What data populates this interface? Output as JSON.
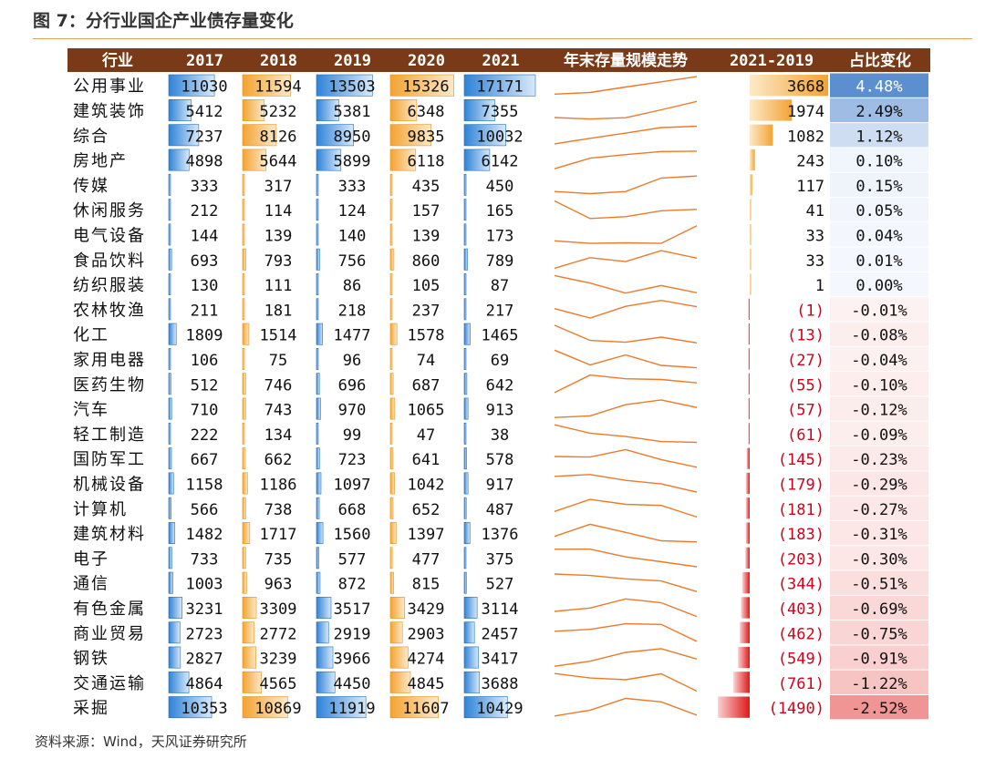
{
  "title": "图 7：分行业国企产业债存量变化",
  "source": "资料来源：Wind，天风证券研究所",
  "colors": {
    "header_bg": "#7a3a17",
    "header_text": "#ffffff",
    "blue_bar": "#2f83d8",
    "orange_bar": "#f3a332",
    "sparkline": "#ec7a2a",
    "negative_text": "#d0021b",
    "diff_pos_bar": "#f3a332",
    "diff_neg_bar": "#e01818",
    "pct_pos": "#5b8fd0",
    "pct_neg": "#e84c4c"
  },
  "chart_data": {
    "type": "table",
    "columns": [
      "行业",
      "2017",
      "2018",
      "2019",
      "2020",
      "2021",
      "年末存量规模走势",
      "2021-2019",
      "占比变化"
    ],
    "years": [
      "2017",
      "2018",
      "2019",
      "2020",
      "2021"
    ],
    "rows": [
      {
        "industry": "公用事业",
        "values": [
          11030,
          11594,
          13503,
          15326,
          17171
        ],
        "diff": 3668,
        "diff_label": "3668",
        "pct": 4.48,
        "pct_label": "4.48%"
      },
      {
        "industry": "建筑装饰",
        "values": [
          5412,
          5232,
          5381,
          6348,
          7355
        ],
        "diff": 1974,
        "diff_label": "1974",
        "pct": 2.49,
        "pct_label": "2.49%"
      },
      {
        "industry": "综合",
        "values": [
          7237,
          8126,
          8950,
          9835,
          10032
        ],
        "diff": 1082,
        "diff_label": "1082",
        "pct": 1.12,
        "pct_label": "1.12%"
      },
      {
        "industry": "房地产",
        "values": [
          4898,
          5644,
          5899,
          6118,
          6142
        ],
        "diff": 243,
        "diff_label": "243",
        "pct": 0.1,
        "pct_label": "0.10%"
      },
      {
        "industry": "传媒",
        "values": [
          333,
          317,
          333,
          435,
          450
        ],
        "diff": 117,
        "diff_label": "117",
        "pct": 0.15,
        "pct_label": "0.15%"
      },
      {
        "industry": "休闲服务",
        "values": [
          212,
          114,
          124,
          157,
          165
        ],
        "diff": 41,
        "diff_label": "41",
        "pct": 0.05,
        "pct_label": "0.05%"
      },
      {
        "industry": "电气设备",
        "values": [
          144,
          139,
          140,
          139,
          173
        ],
        "diff": 33,
        "diff_label": "33",
        "pct": 0.04,
        "pct_label": "0.04%"
      },
      {
        "industry": "食品饮料",
        "values": [
          693,
          793,
          756,
          860,
          789
        ],
        "diff": 33,
        "diff_label": "33",
        "pct": 0.01,
        "pct_label": "0.01%"
      },
      {
        "industry": "纺织服装",
        "values": [
          130,
          111,
          86,
          105,
          87
        ],
        "diff": 1,
        "diff_label": "1",
        "pct": 0.0,
        "pct_label": "0.00%"
      },
      {
        "industry": "农林牧渔",
        "values": [
          211,
          181,
          218,
          237,
          217
        ],
        "diff": -1,
        "diff_label": "(1)",
        "pct": -0.01,
        "pct_label": "-0.01%"
      },
      {
        "industry": "化工",
        "values": [
          1809,
          1514,
          1477,
          1578,
          1465
        ],
        "diff": -13,
        "diff_label": "(13)",
        "pct": -0.08,
        "pct_label": "-0.08%"
      },
      {
        "industry": "家用电器",
        "values": [
          106,
          75,
          96,
          74,
          69
        ],
        "diff": -27,
        "diff_label": "(27)",
        "pct": -0.04,
        "pct_label": "-0.04%"
      },
      {
        "industry": "医药生物",
        "values": [
          512,
          746,
          696,
          687,
          642
        ],
        "diff": -55,
        "diff_label": "(55)",
        "pct": -0.1,
        "pct_label": "-0.10%"
      },
      {
        "industry": "汽车",
        "values": [
          710,
          743,
          970,
          1065,
          913
        ],
        "diff": -57,
        "diff_label": "(57)",
        "pct": -0.12,
        "pct_label": "-0.12%"
      },
      {
        "industry": "轻工制造",
        "values": [
          222,
          134,
          99,
          47,
          38
        ],
        "diff": -61,
        "diff_label": "(61)",
        "pct": -0.09,
        "pct_label": "-0.09%"
      },
      {
        "industry": "国防军工",
        "values": [
          667,
          662,
          723,
          641,
          578
        ],
        "diff": -145,
        "diff_label": "(145)",
        "pct": -0.23,
        "pct_label": "-0.23%"
      },
      {
        "industry": "机械设备",
        "values": [
          1158,
          1186,
          1097,
          1042,
          917
        ],
        "diff": -179,
        "diff_label": "(179)",
        "pct": -0.29,
        "pct_label": "-0.29%"
      },
      {
        "industry": "计算机",
        "values": [
          566,
          738,
          668,
          652,
          487
        ],
        "diff": -181,
        "diff_label": "(181)",
        "pct": -0.27,
        "pct_label": "-0.27%"
      },
      {
        "industry": "建筑材料",
        "values": [
          1482,
          1717,
          1560,
          1397,
          1376
        ],
        "diff": -183,
        "diff_label": "(183)",
        "pct": -0.31,
        "pct_label": "-0.31%"
      },
      {
        "industry": "电子",
        "values": [
          733,
          735,
          577,
          477,
          375
        ],
        "diff": -203,
        "diff_label": "(203)",
        "pct": -0.3,
        "pct_label": "-0.30%"
      },
      {
        "industry": "通信",
        "values": [
          1003,
          963,
          872,
          815,
          527
        ],
        "diff": -344,
        "diff_label": "(344)",
        "pct": -0.51,
        "pct_label": "-0.51%"
      },
      {
        "industry": "有色金属",
        "values": [
          3231,
          3309,
          3517,
          3429,
          3114
        ],
        "diff": -403,
        "diff_label": "(403)",
        "pct": -0.69,
        "pct_label": "-0.69%"
      },
      {
        "industry": "商业贸易",
        "values": [
          2723,
          2772,
          2919,
          2903,
          2457
        ],
        "diff": -462,
        "diff_label": "(462)",
        "pct": -0.75,
        "pct_label": "-0.75%"
      },
      {
        "industry": "钢铁",
        "values": [
          2827,
          3239,
          3966,
          4274,
          3417
        ],
        "diff": -549,
        "diff_label": "(549)",
        "pct": -0.91,
        "pct_label": "-0.91%"
      },
      {
        "industry": "交通运输",
        "values": [
          4864,
          4565,
          4450,
          4845,
          3688
        ],
        "diff": -761,
        "diff_label": "(761)",
        "pct": -1.22,
        "pct_label": "-1.22%"
      },
      {
        "industry": "采掘",
        "values": [
          10353,
          10869,
          11919,
          11607,
          10429
        ],
        "diff": -1490,
        "diff_label": "(1490)",
        "pct": -2.52,
        "pct_label": "-2.52%"
      }
    ]
  }
}
